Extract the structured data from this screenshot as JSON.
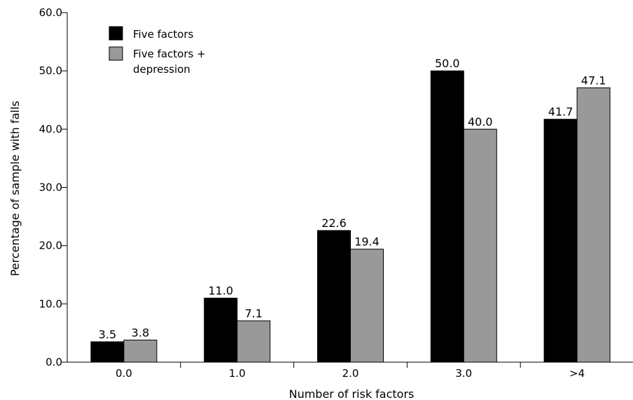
{
  "chart_data": {
    "type": "bar",
    "categories": [
      "0.0",
      "1.0",
      "2.0",
      "3.0",
      ">4"
    ],
    "series": [
      {
        "name": "Five factors",
        "color": "#000000",
        "values": [
          3.5,
          11.0,
          22.6,
          50.0,
          41.7
        ]
      },
      {
        "name_lines": [
          "Five factors +",
          "depression"
        ],
        "color": "#999999",
        "values": [
          3.8,
          7.1,
          19.4,
          40.0,
          47.1
        ]
      }
    ],
    "data_labels": [
      [
        "3.5",
        "11.0",
        "22.6",
        "50.0",
        "41.7"
      ],
      [
        "3.8",
        "7.1",
        "19.4",
        "40.0",
        "47.1"
      ]
    ],
    "y_ticks": [
      "0.0",
      "10.0",
      "20.0",
      "30.0",
      "40.0",
      "50.0",
      "60.0"
    ],
    "ylim": [
      0,
      60
    ],
    "xlabel": "Number of risk factors",
    "ylabel": "Percentage of sample with falls",
    "grid": false,
    "legend_position": "top-left"
  }
}
